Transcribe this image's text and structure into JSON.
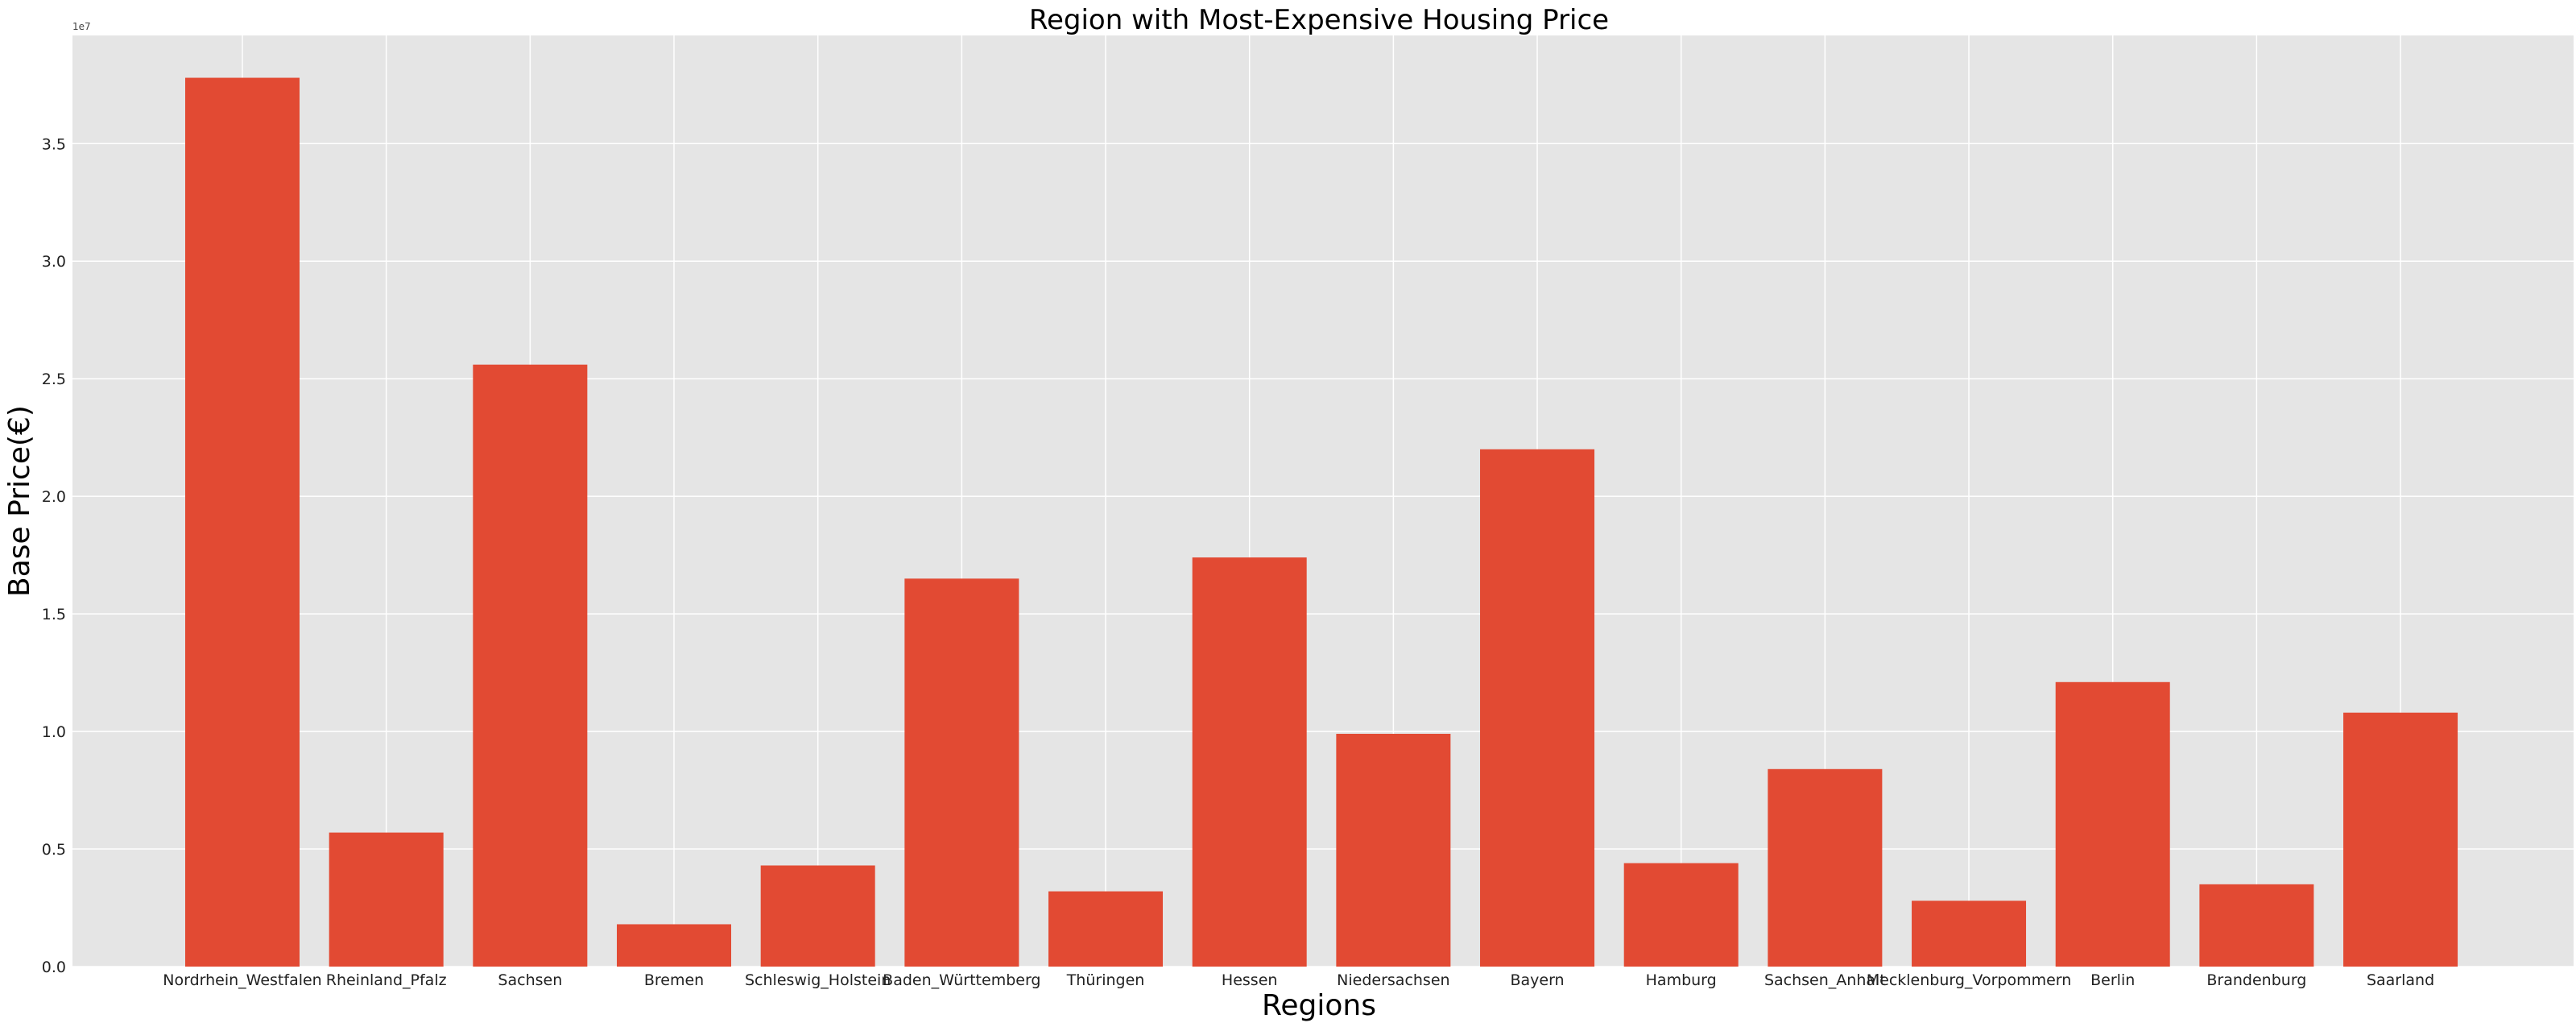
{
  "chart_data": {
    "type": "bar",
    "title": "Region with Most-Expensive Housing Price",
    "xlabel": "Regions",
    "ylabel": "Base Price(€)",
    "y_offset_label": "1e7",
    "y_tick_labels": [
      "0.0",
      "0.5",
      "1.0",
      "1.5",
      "2.0",
      "2.5",
      "3.0",
      "3.5"
    ],
    "y_tick_values": [
      0,
      5000000,
      10000000,
      15000000,
      20000000,
      25000000,
      30000000,
      35000000
    ],
    "ylim": [
      0,
      39600000
    ],
    "grid": true,
    "style": "ggplot",
    "colors": {
      "bar": "#E24A33",
      "plot_background": "#E5E5E5",
      "grid": "#FFFFFF"
    },
    "categories": [
      "Nordrhein_Westfalen",
      "Rheinland_Pfalz",
      "Sachsen",
      "Bremen",
      "Schleswig_Holstein",
      "Baden_Württemberg",
      "Thüringen",
      "Hessen",
      "Niedersachsen",
      "Bayern",
      "Hamburg",
      "Sachsen_Anhalt",
      "Mecklenburg_Vorpommern",
      "Berlin",
      "Brandenburg",
      "Saarland"
    ],
    "values": [
      37800000,
      5700000,
      25600000,
      1800000,
      4300000,
      16500000,
      3200000,
      17400000,
      9900000,
      22000000,
      4400000,
      8400000,
      2800000,
      12100000,
      3500000,
      10800000
    ]
  }
}
